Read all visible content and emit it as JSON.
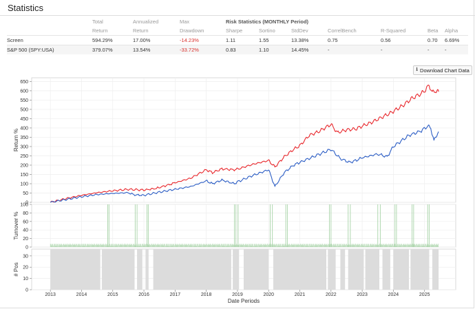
{
  "page": {
    "title": "Statistics"
  },
  "stats": {
    "headers": {
      "total_1": "Total",
      "total_2": "Return",
      "ann_1": "Annualized",
      "ann_2": "Return",
      "max_1": "Max",
      "max_2": "Drawdown",
      "risk_title": "Risk Statistics (MONTHLY Period)",
      "sharpe": "Sharpe",
      "sortino": "Sortino",
      "stddev": "StdDev",
      "correl": "CorrelBench",
      "rsq": "R-Squared",
      "beta": "Beta",
      "alpha": "Alpha"
    },
    "rows": [
      {
        "name": "Screen",
        "total": "594.29%",
        "ann": "17.00%",
        "maxdd": "-14.23%",
        "sharpe": "1.11",
        "sortino": "1.55",
        "stddev": "13.38%",
        "correl": "0.75",
        "rsq": "0.56",
        "beta": "0.70",
        "alpha": "6.69%"
      },
      {
        "name": "S&P 500 (SPY:USA)",
        "total": "379.07%",
        "ann": "13.54%",
        "maxdd": "-33.72%",
        "sharpe": "0.83",
        "sortino": "1.10",
        "stddev": "14.45%",
        "correl": "-",
        "rsq": "-",
        "beta": "-",
        "alpha": "-"
      }
    ]
  },
  "toolbar": {
    "download_label": "Download Chart Data",
    "download_icon": "download-icon"
  },
  "chart_data": [
    {
      "type": "line",
      "title": "",
      "ylabel": "Return %",
      "xlabel": "",
      "ylim": [
        0,
        670
      ],
      "y_ticks": [
        "0",
        "50",
        "100",
        "150",
        "200",
        "250",
        "300",
        "350",
        "400",
        "450",
        "500",
        "550",
        "600",
        "650"
      ],
      "series": [
        {
          "name": "Screen",
          "color": "#e8262b",
          "points": [
            [
              2013.0,
              0
            ],
            [
              2013.5,
              20
            ],
            [
              2014.0,
              38
            ],
            [
              2014.5,
              52
            ],
            [
              2015.0,
              62
            ],
            [
              2015.5,
              70
            ],
            [
              2016.0,
              66
            ],
            [
              2016.4,
              75
            ],
            [
              2016.8,
              95
            ],
            [
              2017.0,
              105
            ],
            [
              2017.5,
              130
            ],
            [
              2018.0,
              175
            ],
            [
              2018.2,
              160
            ],
            [
              2018.5,
              180
            ],
            [
              2018.9,
              175
            ],
            [
              2019.0,
              178
            ],
            [
              2019.5,
              205
            ],
            [
              2020.0,
              225
            ],
            [
              2020.2,
              190
            ],
            [
              2020.5,
              245
            ],
            [
              2020.8,
              285
            ],
            [
              2021.0,
              305
            ],
            [
              2021.3,
              360
            ],
            [
              2021.6,
              380
            ],
            [
              2021.9,
              410
            ],
            [
              2022.0,
              420
            ],
            [
              2022.2,
              375
            ],
            [
              2022.5,
              390
            ],
            [
              2022.8,
              395
            ],
            [
              2023.0,
              410
            ],
            [
              2023.3,
              430
            ],
            [
              2023.6,
              455
            ],
            [
              2023.9,
              480
            ],
            [
              2024.0,
              490
            ],
            [
              2024.3,
              520
            ],
            [
              2024.6,
              560
            ],
            [
              2024.9,
              585
            ],
            [
              2025.0,
              600
            ],
            [
              2025.15,
              630
            ],
            [
              2025.25,
              590
            ],
            [
              2025.35,
              600
            ],
            [
              2025.45,
              595
            ]
          ]
        },
        {
          "name": "S&P 500 (SPY:USA)",
          "color": "#2a5cc4",
          "points": [
            [
              2013.0,
              0
            ],
            [
              2013.5,
              15
            ],
            [
              2014.0,
              30
            ],
            [
              2014.5,
              42
            ],
            [
              2015.0,
              48
            ],
            [
              2015.5,
              52
            ],
            [
              2015.7,
              40
            ],
            [
              2016.0,
              38
            ],
            [
              2016.5,
              55
            ],
            [
              2017.0,
              70
            ],
            [
              2017.5,
              85
            ],
            [
              2018.0,
              115
            ],
            [
              2018.2,
              100
            ],
            [
              2018.5,
              120
            ],
            [
              2018.9,
              100
            ],
            [
              2019.0,
              110
            ],
            [
              2019.5,
              145
            ],
            [
              2020.0,
              175
            ],
            [
              2020.2,
              85
            ],
            [
              2020.5,
              160
            ],
            [
              2020.8,
              200
            ],
            [
              2021.0,
              215
            ],
            [
              2021.5,
              250
            ],
            [
              2022.0,
              285
            ],
            [
              2022.3,
              235
            ],
            [
              2022.6,
              215
            ],
            [
              2022.8,
              225
            ],
            [
              2023.0,
              240
            ],
            [
              2023.5,
              260
            ],
            [
              2023.8,
              245
            ],
            [
              2024.0,
              300
            ],
            [
              2024.5,
              360
            ],
            [
              2024.9,
              385
            ],
            [
              2025.1,
              410
            ],
            [
              2025.2,
              400
            ],
            [
              2025.3,
              330
            ],
            [
              2025.38,
              360
            ],
            [
              2025.45,
              380
            ]
          ]
        }
      ]
    },
    {
      "type": "bar",
      "ylabel": "Turnover %",
      "ylim": [
        0,
        100
      ],
      "y_ticks": [
        "0",
        "20",
        "40",
        "60",
        "80",
        "100"
      ],
      "bar_color": "#a7d3a7",
      "spike_years": [
        2014.84,
        2014.88,
        2015.72,
        2015.78,
        2016.1,
        2016.14,
        2018.9,
        2018.95,
        2019.02,
        2020.05,
        2020.12,
        2020.55,
        2020.6,
        2021.95,
        2022.0,
        2022.55,
        2022.62,
        2023.5,
        2023.58,
        2024.05,
        2024.1,
        2024.6,
        2024.65,
        2025.1,
        2025.15
      ],
      "baseline_level": 8
    },
    {
      "type": "bar",
      "ylabel": "# Pos",
      "xlabel": "Date Periods",
      "ylim": [
        0,
        36
      ],
      "y_ticks": [
        "0",
        "10",
        "20",
        "30"
      ],
      "bar_color": "#dcdcdc",
      "filled_ranges": [
        [
          2013.0,
          2014.6
        ],
        [
          2014.65,
          2015.7
        ],
        [
          2015.78,
          2015.95
        ],
        [
          2016.05,
          2016.15
        ],
        [
          2016.3,
          2018.8
        ],
        [
          2018.85,
          2019.05
        ],
        [
          2019.2,
          2020.0
        ],
        [
          2020.15,
          2021.85
        ],
        [
          2021.9,
          2022.15
        ],
        [
          2022.3,
          2022.45
        ],
        [
          2022.55,
          2023.05
        ],
        [
          2023.1,
          2023.55
        ],
        [
          2023.65,
          2023.9
        ],
        [
          2024.0,
          2024.5
        ],
        [
          2024.55,
          2025.15
        ],
        [
          2025.25,
          2025.45
        ]
      ],
      "position_level": 36
    }
  ],
  "x_axis": {
    "ticks": [
      "2013",
      "2014",
      "2015",
      "2016",
      "2017",
      "2018",
      "2019",
      "2020",
      "2021",
      "2022",
      "2023",
      "2024",
      "2025"
    ],
    "xlim": [
      2012.4,
      2026.0
    ],
    "label": "Date Periods"
  }
}
